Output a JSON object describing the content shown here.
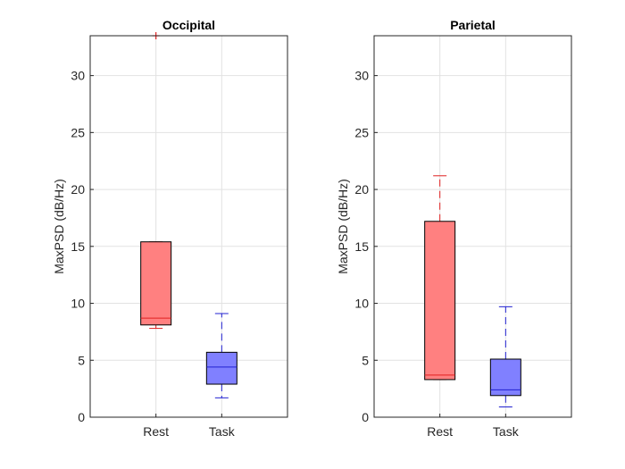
{
  "chart_data": [
    {
      "type": "box",
      "title": "Occipital",
      "xlabel": "",
      "ylabel": "MaxPSD (dB/Hz)",
      "ylim": [
        0,
        33.5
      ],
      "yticks": [
        "0",
        "5",
        "10",
        "15",
        "20",
        "25",
        "30"
      ],
      "grid": true,
      "categories": [
        "Rest",
        "Task"
      ],
      "boxes": [
        {
          "category": "Rest",
          "whisker_low": 7.8,
          "q1": 8.1,
          "median": 8.7,
          "q3": 15.4,
          "whisker_high": 15.4,
          "outliers": [
            33.5
          ],
          "color": "#ff8080",
          "edge": "#e02020"
        },
        {
          "category": "Task",
          "whisker_low": 1.7,
          "q1": 2.9,
          "median": 4.4,
          "q3": 5.7,
          "whisker_high": 9.1,
          "outliers": [],
          "color": "#8080ff",
          "edge": "#2020d0"
        }
      ]
    },
    {
      "type": "box",
      "title": "Parietal",
      "xlabel": "",
      "ylabel": "MaxPSD (dB/Hz)",
      "ylim": [
        0,
        33.5
      ],
      "yticks": [
        "0",
        "5",
        "10",
        "15",
        "20",
        "25",
        "30"
      ],
      "grid": true,
      "categories": [
        "Rest",
        "Task"
      ],
      "boxes": [
        {
          "category": "Rest",
          "whisker_low": 3.3,
          "q1": 3.3,
          "median": 3.7,
          "q3": 17.2,
          "whisker_high": 21.2,
          "outliers": [],
          "color": "#ff8080",
          "edge": "#e02020"
        },
        {
          "category": "Task",
          "whisker_low": 0.9,
          "q1": 1.9,
          "median": 2.4,
          "q3": 5.1,
          "whisker_high": 9.7,
          "outliers": [],
          "color": "#8080ff",
          "edge": "#2020d0"
        }
      ]
    }
  ]
}
